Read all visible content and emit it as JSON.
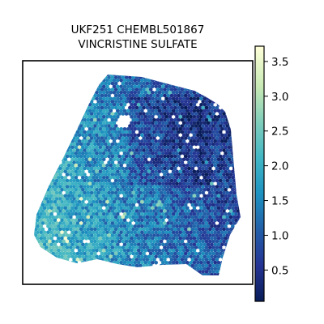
{
  "chart_data": {
    "type": "scatter",
    "title_line1": "UKF251 CHEMBL501867",
    "title_line2": "VINCRISTINE SULFATE",
    "xlabel": "",
    "ylabel": "",
    "grid": false,
    "colormap": "YlGnBu_r",
    "colorbar": {
      "range": [
        0.05,
        3.72
      ],
      "ticks": [
        0.5,
        1.0,
        1.5,
        2.0,
        2.5,
        3.0,
        3.5
      ],
      "tick_labels": [
        "0.5",
        "1.0",
        "1.5",
        "2.0",
        "2.5",
        "3.0",
        "3.5"
      ]
    },
    "colors": {
      "low": "#081d58",
      "mid": "#1d91c0",
      "high": "#ffffd9"
    },
    "spots_summary": "dense hexagonal spot grid, values mostly 0.5–2.0"
  }
}
